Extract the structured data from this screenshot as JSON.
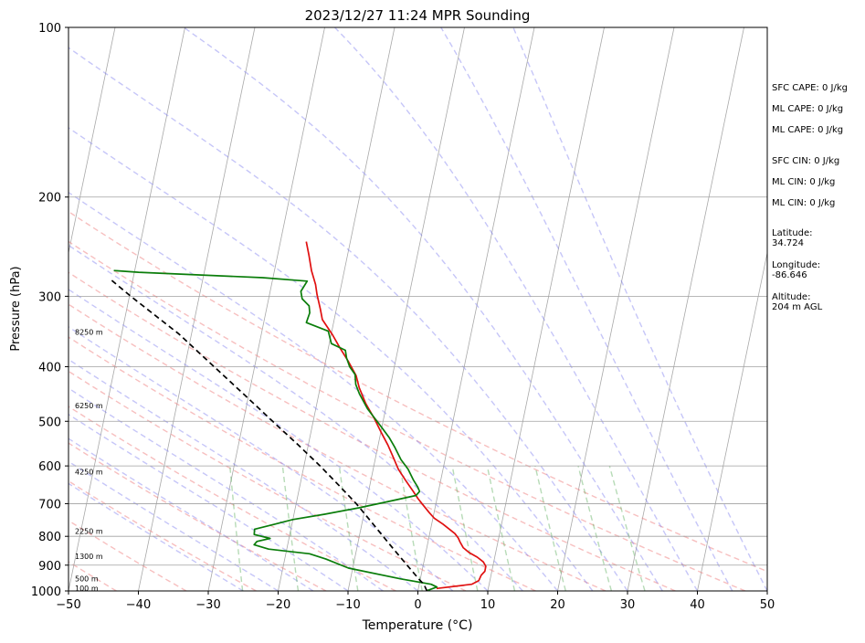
{
  "chart_data": {
    "type": "line",
    "title": "2023/12/27 11:24 MPR Sounding",
    "xlabel": "Temperature (°C)",
    "ylabel": "Pressure (hPa)",
    "xlim": [
      -50,
      50
    ],
    "ylim": [
      1000,
      100
    ],
    "y_scale": "log",
    "skew_t": true,
    "grid": true,
    "x_ticks": [
      "−50",
      "−40",
      "−30",
      "−20",
      "−10",
      "0",
      "10",
      "20",
      "30",
      "40",
      "50"
    ],
    "y_ticks": [
      {
        "p": 100,
        "label": "100"
      },
      {
        "p": 200,
        "label": "200"
      },
      {
        "p": 300,
        "label": "300"
      },
      {
        "p": 400,
        "label": "400"
      },
      {
        "p": 500,
        "label": "500"
      },
      {
        "p": 600,
        "label": "600"
      },
      {
        "p": 700,
        "label": "700"
      },
      {
        "p": 800,
        "label": "800"
      },
      {
        "p": 900,
        "label": "900"
      },
      {
        "p": 1000,
        "label": "1000"
      }
    ],
    "height_labels": [
      {
        "p": 988,
        "text": "100 m"
      },
      {
        "p": 950,
        "text": "500 m"
      },
      {
        "p": 868,
        "text": "1300 m"
      },
      {
        "p": 783,
        "text": "2250 m"
      },
      {
        "p": 615,
        "text": "4250 m"
      },
      {
        "p": 469,
        "text": "6250 m"
      },
      {
        "p": 347,
        "text": "8250 m"
      }
    ],
    "colors": {
      "temperature": "#e01010",
      "dewpoint": "#0a7d0a",
      "parcel": "#000000",
      "dry_adiabats": "#f08080",
      "moist_adiabats": "#8080f0",
      "mixing_ratio": "#60b060",
      "isotherms": "#999999"
    },
    "series": [
      {
        "key": "temperature",
        "points": [
          [
            2.6,
            990
          ],
          [
            7.5,
            973
          ],
          [
            8.4,
            959
          ],
          [
            8.6,
            938
          ],
          [
            9.0,
            923
          ],
          [
            9.0,
            904
          ],
          [
            8.5,
            888
          ],
          [
            7.5,
            871
          ],
          [
            6.2,
            855
          ],
          [
            5.2,
            838
          ],
          [
            4.6,
            819
          ],
          [
            4.2,
            805
          ],
          [
            3.6,
            791
          ],
          [
            1.6,
            761
          ],
          [
            0.2,
            743
          ],
          [
            -0.7,
            726
          ],
          [
            -1.7,
            706
          ],
          [
            -2.7,
            686
          ],
          [
            -3.6,
            666
          ],
          [
            -5.0,
            637
          ],
          [
            -6.4,
            608
          ],
          [
            -7.6,
            576
          ],
          [
            -8.6,
            551
          ],
          [
            -10.0,
            522
          ],
          [
            -11.3,
            495
          ],
          [
            -13.0,
            465
          ],
          [
            -14.4,
            436
          ],
          [
            -15.2,
            415
          ],
          [
            -16.7,
            392
          ],
          [
            -18.3,
            371
          ],
          [
            -19.8,
            351
          ],
          [
            -21.7,
            330
          ],
          [
            -22.3,
            316
          ],
          [
            -23.2,
            298
          ],
          [
            -23.7,
            286
          ],
          [
            -24.7,
            270
          ],
          [
            -25.5,
            254
          ],
          [
            -26.3,
            240
          ]
        ]
      },
      {
        "key": "dewpoint",
        "points": [
          [
            1.3,
            999
          ],
          [
            2.6,
            984
          ],
          [
            1.7,
            973
          ],
          [
            -2.8,
            952
          ],
          [
            -10.6,
            911
          ],
          [
            -14.1,
            878
          ],
          [
            -16.6,
            859
          ],
          [
            -22.6,
            843
          ],
          [
            -24.8,
            828
          ],
          [
            -24.5,
            817
          ],
          [
            -22.7,
            807
          ],
          [
            -25.1,
            794
          ],
          [
            -25.2,
            777
          ],
          [
            -22.6,
            762
          ],
          [
            -20.0,
            747
          ],
          [
            -15.6,
            731
          ],
          [
            -10.9,
            712
          ],
          [
            -7.1,
            695
          ],
          [
            -3.1,
            677
          ],
          [
            -2.7,
            666
          ],
          [
            -3.1,
            654
          ],
          [
            -3.9,
            636
          ],
          [
            -5.0,
            608
          ],
          [
            -6.3,
            585
          ],
          [
            -7.5,
            557
          ],
          [
            -8.6,
            535
          ],
          [
            -10.0,
            513
          ],
          [
            -12.6,
            475
          ],
          [
            -14.2,
            447
          ],
          [
            -15.0,
            430
          ],
          [
            -15.4,
            413
          ],
          [
            -16.4,
            400
          ],
          [
            -17.1,
            386
          ],
          [
            -17.5,
            374
          ],
          [
            -19.7,
            364
          ],
          [
            -20.5,
            346
          ],
          [
            -23.9,
            334
          ],
          [
            -23.7,
            321
          ],
          [
            -24.0,
            312
          ],
          [
            -25.2,
            303
          ],
          [
            -25.6,
            294
          ],
          [
            -25.0,
            282
          ],
          [
            -31.5,
            278
          ],
          [
            -49.4,
            272
          ],
          [
            -53.0,
            270
          ]
        ]
      },
      {
        "key": "parcel",
        "points": [
          [
            1.3,
            1000
          ],
          [
            0.7,
            975
          ],
          [
            -0.3,
            950
          ],
          [
            -2.3,
            900
          ],
          [
            -4.4,
            850
          ],
          [
            -6.6,
            800
          ],
          [
            -8.9,
            750
          ],
          [
            -11.4,
            700
          ],
          [
            -14.4,
            650
          ],
          [
            -17.7,
            600
          ],
          [
            -21.5,
            550
          ],
          [
            -25.8,
            500
          ],
          [
            -30.5,
            450
          ],
          [
            -35.8,
            400
          ],
          [
            -41.8,
            350
          ],
          [
            -49.8,
            300
          ],
          [
            -53.2,
            280
          ]
        ]
      }
    ]
  },
  "annotations": [
    {
      "lines": [
        "SFC CAPE: 0 J/kg"
      ]
    },
    {
      "lines": [
        "ML CAPE: 0 J/kg"
      ]
    },
    {
      "lines": [
        "ML CAPE: 0 J/kg"
      ]
    },
    {
      "lines": [
        "SFC CIN: 0 J/kg"
      ]
    },
    {
      "lines": [
        "ML CIN: 0 J/kg"
      ]
    },
    {
      "lines": [
        "ML CIN: 0 J/kg"
      ]
    },
    {
      "lines": [
        "Latitude:",
        "34.724"
      ]
    },
    {
      "lines": [
        "Longitude:",
        "-86.646"
      ]
    },
    {
      "lines": [
        "Altitude:",
        "204 m AGL"
      ]
    }
  ]
}
